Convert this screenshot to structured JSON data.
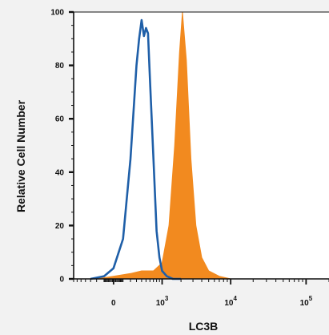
{
  "chart_data": {
    "type": "area",
    "xlabel": "LC3B",
    "ylabel": "Relative Cell Number",
    "x_scale": "biexponential",
    "x_tick_labels": [
      {
        "base": "0",
        "exp": ""
      },
      {
        "base": "10",
        "exp": "3"
      },
      {
        "base": "10",
        "exp": "4"
      },
      {
        "base": "10",
        "exp": "5"
      }
    ],
    "y_tick_labels": [
      "0",
      "20",
      "40",
      "60",
      "80",
      "100"
    ],
    "ylim": [
      0,
      100
    ],
    "grid": false,
    "series": [
      {
        "style": "outline",
        "color": "#1f5fa8",
        "x": [
          -300,
          -100,
          0,
          100,
          200,
          300,
          350,
          400,
          450,
          500,
          550,
          600,
          700,
          800,
          900,
          1000,
          1200,
          1500,
          2000
        ],
        "y": [
          0,
          1,
          4,
          15,
          45,
          80,
          90,
          97,
          91,
          94,
          92,
          75,
          45,
          18,
          8,
          3,
          1,
          0,
          0
        ]
      },
      {
        "style": "filled",
        "color": "#f28a1f",
        "x": [
          -200,
          0,
          200,
          400,
          700,
          1000,
          1300,
          1600,
          1900,
          2100,
          2400,
          2800,
          3300,
          4000,
          5000,
          7000,
          10000,
          30000,
          100000
        ],
        "y": [
          0,
          1,
          2,
          3,
          3,
          6,
          20,
          50,
          85,
          100,
          82,
          45,
          20,
          8,
          3,
          1,
          0,
          0,
          0
        ]
      }
    ]
  }
}
